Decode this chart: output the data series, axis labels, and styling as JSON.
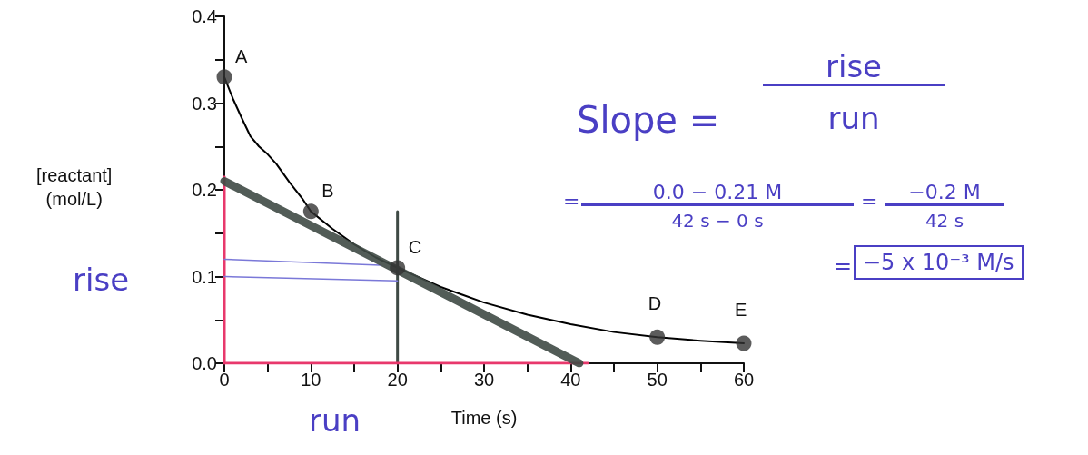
{
  "chart_data": {
    "type": "line",
    "xlabel": "Time (s)",
    "ylabel": "[reactant] (mol/L)",
    "xlim": [
      0,
      60
    ],
    "xticks": [
      0,
      {
        "value": 5,
        "label": null
      },
      10,
      {
        "value": 15,
        "label": null
      },
      20,
      {
        "value": 25,
        "label": null
      },
      30,
      {
        "value": 35,
        "label": null
      },
      40,
      {
        "value": 45,
        "label": null
      },
      50,
      {
        "value": 55,
        "label": null
      },
      60
    ],
    "ylim": [
      0,
      0.4
    ],
    "yticks": [
      {
        "value": 0,
        "label": "0.0"
      },
      {
        "value": 0.05,
        "label": null
      },
      {
        "value": 0.1,
        "label": "0.1"
      },
      {
        "value": 0.15,
        "label": null
      },
      {
        "value": 0.2,
        "label": "0.2"
      },
      {
        "value": 0.25,
        "label": null
      },
      {
        "value": 0.3,
        "label": "0.3"
      },
      {
        "value": 0.35,
        "label": null
      },
      {
        "value": 0.4,
        "label": "0.4"
      }
    ],
    "series": [
      {
        "color": "#000000",
        "marker": "none",
        "x": [
          0,
          1,
          2,
          3,
          4,
          5,
          6,
          7.5,
          9,
          10,
          12.5,
          15,
          17.5,
          20,
          25,
          30,
          35,
          40,
          45,
          50,
          55,
          60
        ],
        "values": [
          0.33,
          0.305,
          0.283,
          0.262,
          0.25,
          0.241,
          0.23,
          0.209,
          0.19,
          0.175,
          0.155,
          0.137,
          0.122,
          0.11,
          0.088,
          0.07,
          0.056,
          0.045,
          0.036,
          0.03,
          0.026,
          0.023
        ]
      },
      {
        "type": "scatter",
        "color": "#333333",
        "marker": "circle",
        "x": [
          0,
          10,
          20,
          50,
          60
        ],
        "values": [
          0.33,
          0.175,
          0.11,
          0.03,
          0.023
        ]
      },
      {
        "color": "#3f4a45",
        "marker": "none",
        "x": [
          0,
          41
        ],
        "values": [
          0.21,
          0
        ]
      },
      {
        "color": "#3f4a45",
        "marker": "none",
        "x": [
          20,
          20
        ],
        "values": [
          0,
          0.175
        ]
      },
      {
        "color": "#e8386c",
        "marker": "none",
        "x": [
          0,
          0
        ],
        "values": [
          0,
          0.215
        ]
      },
      {
        "color": "#e8386c",
        "marker": "none",
        "x": [
          0,
          42
        ],
        "values": [
          0,
          0
        ]
      },
      {
        "color": "#7a78d8",
        "marker": "none",
        "x": [
          0,
          18
        ],
        "values": [
          0.12,
          0.113
        ]
      },
      {
        "color": "#7a78d8",
        "marker": "none",
        "x": [
          0,
          20
        ],
        "values": [
          0.1,
          0.095
        ]
      }
    ],
    "annotations": [
      "Slope =",
      "rise",
      "run",
      "=",
      "0.0 − 0.21 M",
      "42 s − 0 s",
      "=",
      "−0.2 M",
      "42 s",
      "=",
      "−5 x 10⁻³ M/s",
      "rise",
      "run",
      {
        "text": "A",
        "x": 0,
        "y": 0.33
      },
      {
        "text": "B",
        "x": 10,
        "y": 0.175
      },
      {
        "text": "C",
        "x": 20,
        "y": 0.11
      },
      {
        "text": "D",
        "x": 50,
        "y": 0.03
      },
      {
        "text": "E",
        "x": 60,
        "y": 0.023
      }
    ]
  }
}
